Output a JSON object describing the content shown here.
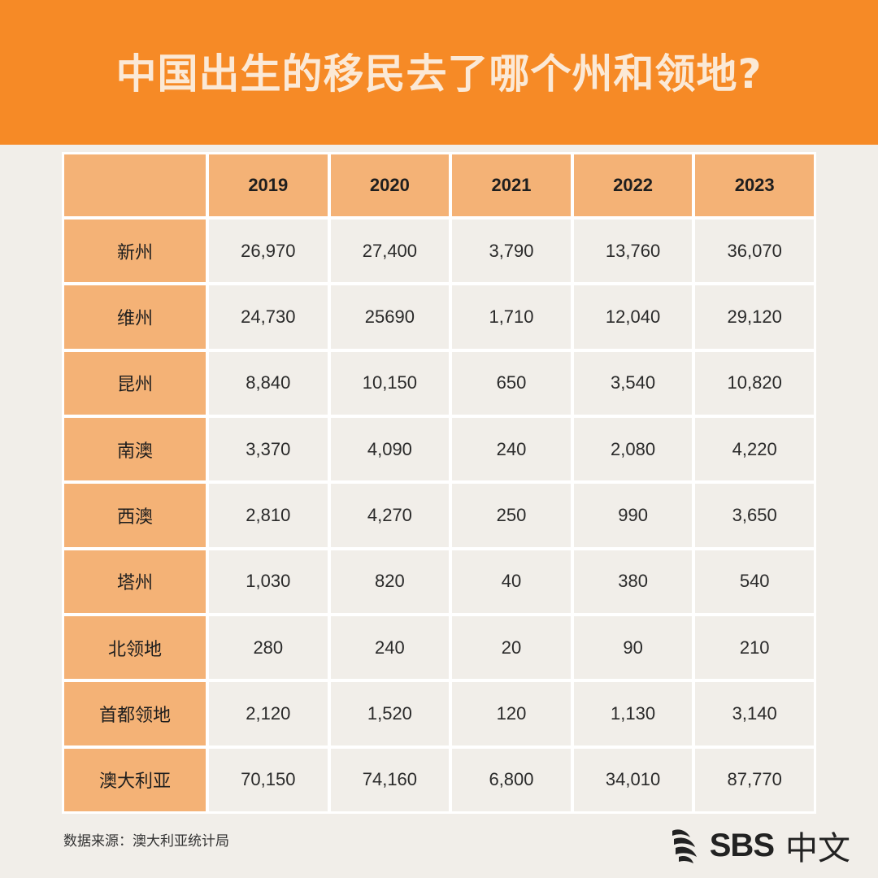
{
  "title": "中国出生的移民去了哪个州和领地?",
  "chart_data": {
    "type": "table",
    "columns": [
      "2019",
      "2020",
      "2021",
      "2022",
      "2023"
    ],
    "rows": [
      {
        "label": "新州",
        "values": [
          "26,970",
          "27,400",
          "3,790",
          "13,760",
          "36,070"
        ]
      },
      {
        "label": "维州",
        "values": [
          "24,730",
          "25690",
          "1,710",
          "12,040",
          "29,120"
        ]
      },
      {
        "label": "昆州",
        "values": [
          "8,840",
          "10,150",
          "650",
          "3,540",
          "10,820"
        ]
      },
      {
        "label": "南澳",
        "values": [
          "3,370",
          "4,090",
          "240",
          "2,080",
          "4,220"
        ]
      },
      {
        "label": "西澳",
        "values": [
          "2,810",
          "4,270",
          "250",
          "990",
          "3,650"
        ]
      },
      {
        "label": "塔州",
        "values": [
          "1,030",
          "820",
          "40",
          "380",
          "540"
        ]
      },
      {
        "label": "北领地",
        "values": [
          "280",
          "240",
          "20",
          "90",
          "210"
        ]
      },
      {
        "label": "首都领地",
        "values": [
          "2,120",
          "1,520",
          "120",
          "1,130",
          "3,140"
        ]
      },
      {
        "label": "澳大利亚",
        "values": [
          "70,150",
          "74,160",
          "6,800",
          "34,010",
          "87,770"
        ]
      }
    ]
  },
  "source": "数据来源：澳大利亚统计局",
  "logo": {
    "brand": "SBS",
    "suffix": "中文",
    "icon": "sbs-wave-icon"
  },
  "colors": {
    "header": "#f68a26",
    "title": "#fbe9d6",
    "table_header": "#f4b276",
    "cell": "#f1eee9",
    "background": "#f1eee9"
  }
}
